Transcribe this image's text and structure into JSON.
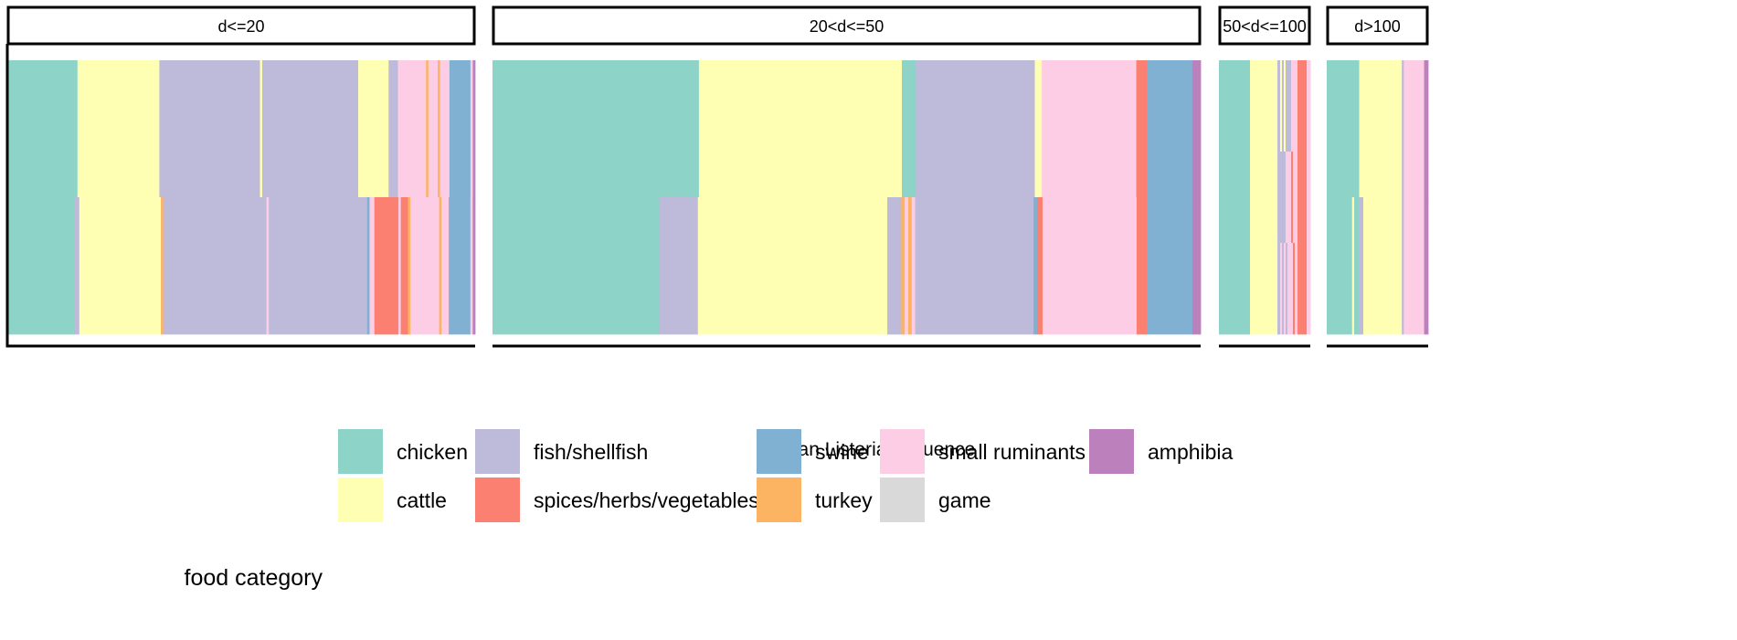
{
  "chart_data": {
    "type": "heatmap",
    "title": "",
    "xlabel": "human Listeria sequence",
    "ylabel": "",
    "colors": {
      "chicken": "#8ED3C7",
      "cattle": "#FFFFB3",
      "fish/shellfish": "#BEBADA",
      "spices/herbs/vegetables": "#FB8072",
      "swine": "#80B1D3",
      "turkey": "#FDB462",
      "small ruminants": "#FCCDE5",
      "game": "#D9D9D9",
      "amphibia": "#BC80BD"
    },
    "legend": {
      "title": "food category",
      "placement": "bottom",
      "entries": [
        "chicken",
        "cattle",
        "fish/shellfish",
        "spices/herbs/vegetables",
        "swine",
        "turkey",
        "small ruminants",
        "game",
        "amphibia"
      ]
    },
    "panels": [
      {
        "label": "d<=20",
        "n": 100,
        "rows": [
          [
            [
              "chicken",
              15
            ],
            [
              "cattle",
              17.5
            ],
            [
              "fish/shellfish",
              21.5
            ],
            [
              "cattle",
              0.5
            ],
            [
              "fish/shellfish",
              20.5
            ],
            [
              "cattle",
              6.5
            ],
            [
              "fish/shellfish",
              2
            ],
            [
              "small ruminants",
              6
            ],
            [
              "turkey",
              0.5
            ],
            [
              "small ruminants",
              2
            ],
            [
              "turkey",
              0.5
            ],
            [
              "small ruminants",
              2
            ],
            [
              "swine",
              4.5
            ],
            [
              "small ruminants",
              0.5
            ],
            [
              "amphibia",
              0.5
            ]
          ],
          [
            [
              "chicken",
              14
            ],
            [
              "fish/shellfish",
              1
            ],
            [
              "cattle",
              17
            ],
            [
              "turkey",
              0.5
            ],
            [
              "fish/shellfish",
              21.5
            ],
            [
              "small ruminants",
              0.5
            ],
            [
              "fish/shellfish",
              20.5
            ],
            [
              "swine",
              0.5
            ],
            [
              "small ruminants",
              1
            ],
            [
              "spices/herbs/vegetables",
              5
            ],
            [
              "small ruminants",
              0.5
            ],
            [
              "spices/herbs/vegetables",
              1.5
            ],
            [
              "turkey",
              0.5
            ],
            [
              "small ruminants",
              6
            ],
            [
              "turkey",
              0.5
            ],
            [
              "small ruminants",
              1.5
            ],
            [
              "swine",
              4.5
            ],
            [
              "small ruminants",
              0.5
            ],
            [
              "amphibia",
              0.5
            ]
          ]
        ]
      },
      {
        "label": "20<d<=50",
        "n": 100,
        "rows": [
          [
            [
              "chicken",
              29.5
            ],
            [
              "cattle",
              29
            ],
            [
              "chicken",
              2
            ],
            [
              "fish/shellfish",
              17
            ],
            [
              "cattle",
              1
            ],
            [
              "small ruminants",
              13.5
            ],
            [
              "spices/herbs/vegetables",
              1.5
            ],
            [
              "swine",
              6.5
            ],
            [
              "amphibia",
              1.2
            ]
          ],
          [
            [
              "chicken",
              24
            ],
            [
              "fish/shellfish",
              5.5
            ],
            [
              "cattle",
              27.2
            ],
            [
              "fish/shellfish",
              2
            ],
            [
              "turkey",
              0.5
            ],
            [
              "small ruminants",
              0.5
            ],
            [
              "turkey",
              0.5
            ],
            [
              "small ruminants",
              0.5
            ],
            [
              "fish/shellfish",
              17
            ],
            [
              "swine",
              0.5
            ],
            [
              "spices/herbs/vegetables",
              0.8
            ],
            [
              "small ruminants",
              13.5
            ],
            [
              "spices/herbs/vegetables",
              1.5
            ],
            [
              "swine",
              6.5
            ],
            [
              "amphibia",
              1.2
            ]
          ]
        ]
      },
      {
        "label": "50<d<=100",
        "n": 100,
        "rows": [
          [
            [
              "chicken",
              34
            ],
            [
              "cattle",
              30
            ],
            [
              "fish/shellfish",
              3
            ],
            [
              "cattle",
              2
            ],
            [
              "fish/shellfish",
              2
            ],
            [
              "cattle",
              2
            ],
            [
              "fish/shellfish",
              6
            ],
            [
              "small ruminants",
              7
            ],
            [
              "spices/herbs/vegetables",
              10
            ],
            [
              "small ruminants",
              4
            ]
          ],
          [
            [
              "chicken",
              34
            ],
            [
              "cattle",
              30
            ],
            [
              "fish/shellfish",
              9
            ],
            [
              "small ruminants",
              6
            ],
            [
              "spices/herbs/vegetables",
              2
            ],
            [
              "small ruminants",
              5
            ],
            [
              "spices/herbs/vegetables",
              10
            ],
            [
              "small ruminants",
              4
            ]
          ],
          [
            [
              "chicken",
              34
            ],
            [
              "cattle",
              30
            ],
            [
              "fish/shellfish",
              3
            ],
            [
              "small ruminants",
              2
            ],
            [
              "fish/shellfish",
              2
            ],
            [
              "small ruminants",
              2
            ],
            [
              "fish/shellfish",
              2
            ],
            [
              "small ruminants",
              6
            ],
            [
              "spices/herbs/vegetables",
              2
            ],
            [
              "small ruminants",
              3
            ],
            [
              "spices/herbs/vegetables",
              10
            ],
            [
              "small ruminants",
              4
            ]
          ]
        ]
      },
      {
        "label": "d>100",
        "n": 100,
        "rows": [
          [
            [
              "chicken",
              32
            ],
            [
              "cattle",
              42
            ],
            [
              "fish/shellfish",
              2
            ],
            [
              "small ruminants",
              20
            ],
            [
              "amphibia",
              4
            ]
          ],
          [
            [
              "chicken",
              25
            ],
            [
              "cattle",
              2
            ],
            [
              "chicken",
              5
            ],
            [
              "fish/shellfish",
              4
            ],
            [
              "cattle",
              38
            ],
            [
              "fish/shellfish",
              2
            ],
            [
              "small ruminants",
              20
            ],
            [
              "amphibia",
              4
            ]
          ]
        ]
      }
    ]
  }
}
